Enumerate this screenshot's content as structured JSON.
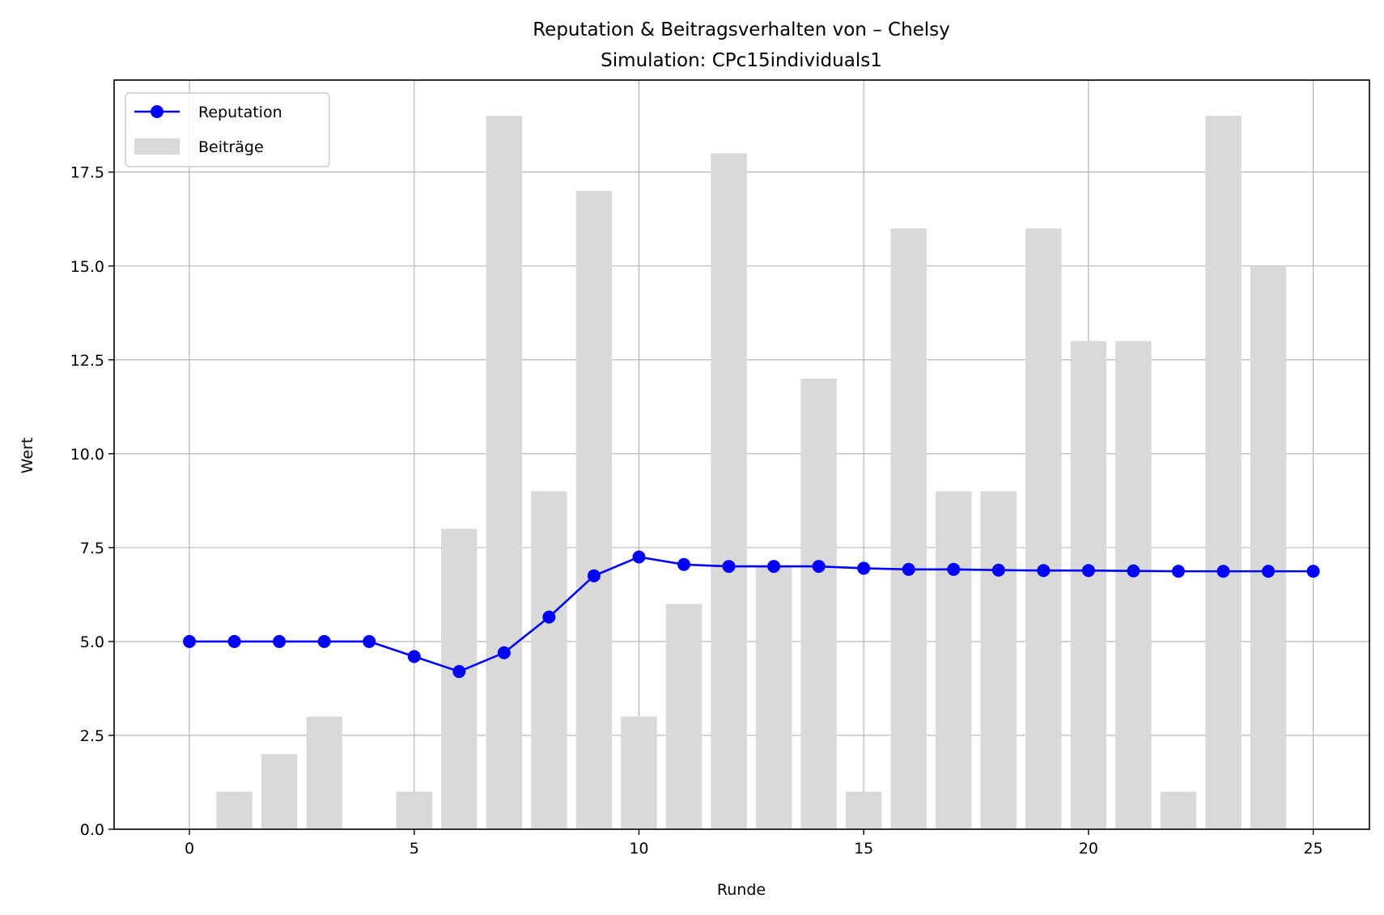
{
  "chart_data": {
    "type": "bar+line",
    "title": "Reputation & Beitragsverhalten von – Chelsy",
    "subtitle": "Simulation: CPc15individuals1",
    "xlabel": "Runde",
    "ylabel": "Wert",
    "xlim": [
      -1.675,
      26.25
    ],
    "ylim": [
      0,
      19.95
    ],
    "xticks": [
      0,
      5,
      10,
      15,
      20,
      25
    ],
    "yticks": [
      0.0,
      2.5,
      5.0,
      7.5,
      10.0,
      12.5,
      15.0,
      17.5
    ],
    "grid": true,
    "legend_position": "upper-left",
    "colors": {
      "line": "#0000ff",
      "bar": "#d9d9d9",
      "grid": "#b0b0b0"
    },
    "series": [
      {
        "name": "Reputation",
        "kind": "line",
        "x": [
          0,
          1,
          2,
          3,
          4,
          5,
          6,
          7,
          8,
          9,
          10,
          11,
          12,
          13,
          14,
          15,
          16,
          17,
          18,
          19,
          20,
          21,
          22,
          23,
          24,
          25
        ],
        "values": [
          5.0,
          5.0,
          5.0,
          5.0,
          5.0,
          4.6,
          4.2,
          4.7,
          5.65,
          6.75,
          7.25,
          7.05,
          7.0,
          7.0,
          7.0,
          6.95,
          6.92,
          6.92,
          6.9,
          6.89,
          6.89,
          6.88,
          6.87,
          6.87,
          6.87,
          6.87
        ]
      },
      {
        "name": "Beiträge",
        "kind": "bar",
        "x": [
          0,
          1,
          2,
          3,
          4,
          5,
          6,
          7,
          8,
          9,
          10,
          11,
          12,
          13,
          14,
          15,
          16,
          17,
          18,
          19,
          20,
          21,
          22,
          23,
          24
        ],
        "values": [
          0,
          1,
          2,
          3,
          0,
          1,
          8,
          19,
          9,
          17,
          3,
          6,
          18,
          7,
          12,
          1,
          16,
          9,
          9,
          16,
          13,
          13,
          1,
          19,
          15
        ]
      }
    ]
  }
}
